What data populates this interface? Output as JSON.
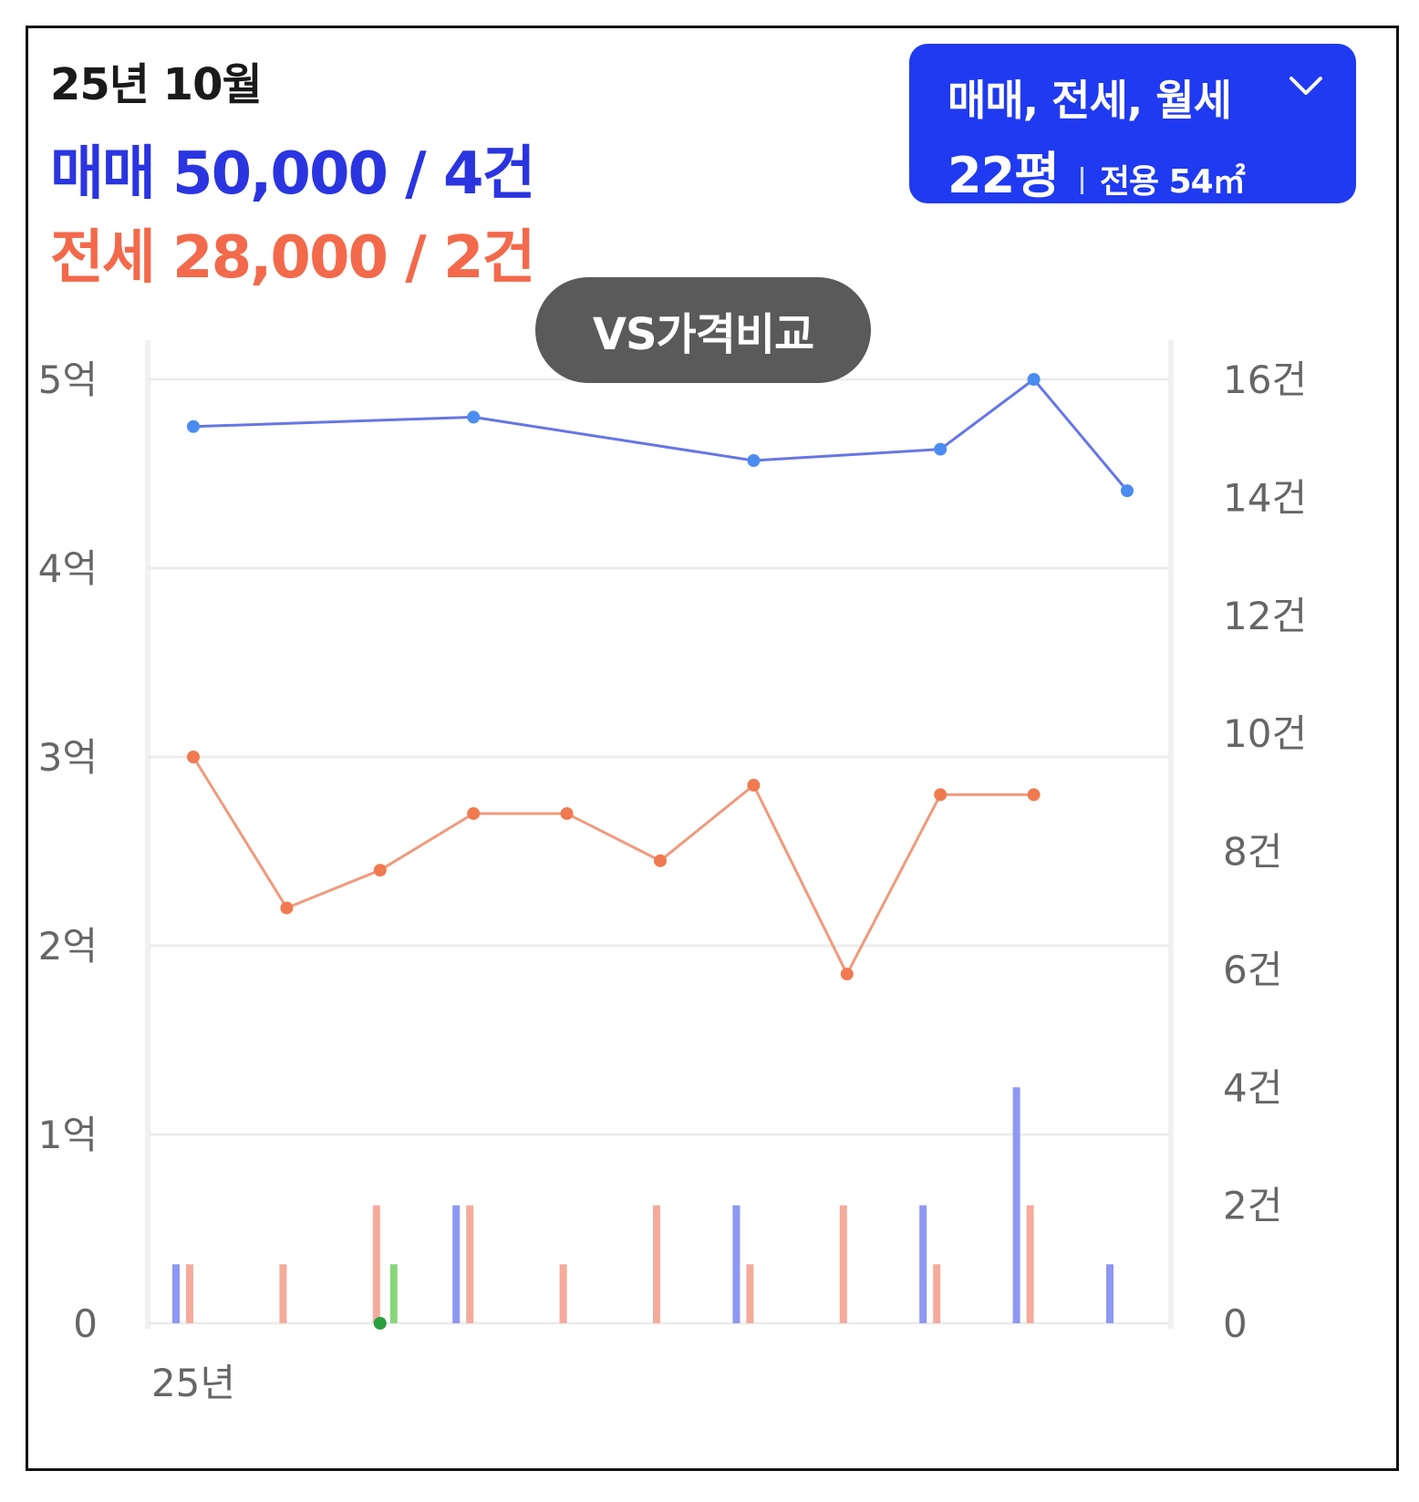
{
  "header": {
    "period": "25년 10월",
    "sale_summary": "매매 50,000 / 4건",
    "jeonse_summary": "전세 28,000 / 2건"
  },
  "filter": {
    "types_label": "매매, 전세, 월세",
    "pyeong_label": "22평",
    "area_label": "전용 54㎡",
    "icon": "chevron-down-icon"
  },
  "compare_button": {
    "label": "VS가격비교"
  },
  "colors": {
    "sale": "#2a35e0",
    "jeonse": "#f26a4b",
    "sale_line": "#6676e6",
    "sale_point": "#4a8cf0",
    "jeonse_line": "#f09a7c",
    "jeonse_point": "#f07a50",
    "sale_bar": "#8e97f2",
    "jeonse_bar": "#f5ab9b",
    "monthly_bar": "#88d67a",
    "monthly_point": "#2aa040",
    "button_bg": "#1f3af0",
    "button_dark": "#5a5a5a",
    "grid": "#ececec",
    "axis_text": "#666666"
  },
  "chart_data": {
    "type": "line",
    "x": [
      0,
      1,
      2,
      3,
      4,
      5,
      6,
      7,
      8,
      9,
      10
    ],
    "x_tick_labels": [
      "25년"
    ],
    "y_left": {
      "ticks": [
        "0",
        "1억",
        "2억",
        "3억",
        "4억",
        "5억"
      ],
      "ylim": [
        0,
        5
      ]
    },
    "y_right": {
      "ticks": [
        "0",
        "2건",
        "4건",
        "6건",
        "8건",
        "10건",
        "12건",
        "14건",
        "16건"
      ],
      "ylim": [
        0,
        16
      ]
    },
    "grid": true,
    "series": [
      {
        "key": "sale",
        "type": "line",
        "values": [
          4.75,
          null,
          null,
          4.8,
          null,
          null,
          4.57,
          null,
          4.63,
          5.0,
          4.41
        ]
      },
      {
        "key": "jeonse",
        "type": "line",
        "values": [
          3.0,
          2.2,
          2.4,
          2.7,
          2.7,
          2.45,
          2.85,
          1.85,
          2.8,
          2.8,
          null
        ]
      },
      {
        "key": "monthly",
        "type": "line",
        "values": [
          null,
          null,
          0,
          null,
          null,
          null,
          null,
          null,
          null,
          null,
          null
        ]
      },
      {
        "key": "sale_count",
        "type": "bar",
        "values": [
          1,
          0,
          0,
          2,
          0,
          0,
          2,
          0,
          2,
          4,
          1
        ]
      },
      {
        "key": "jeonse_count",
        "type": "bar",
        "values": [
          1,
          1,
          2,
          2,
          1,
          2,
          1,
          2,
          1,
          2,
          0
        ]
      },
      {
        "key": "monthly_count",
        "type": "bar",
        "values": [
          0,
          0,
          1,
          0,
          0,
          0,
          0,
          0,
          0,
          0,
          0
        ]
      }
    ]
  }
}
